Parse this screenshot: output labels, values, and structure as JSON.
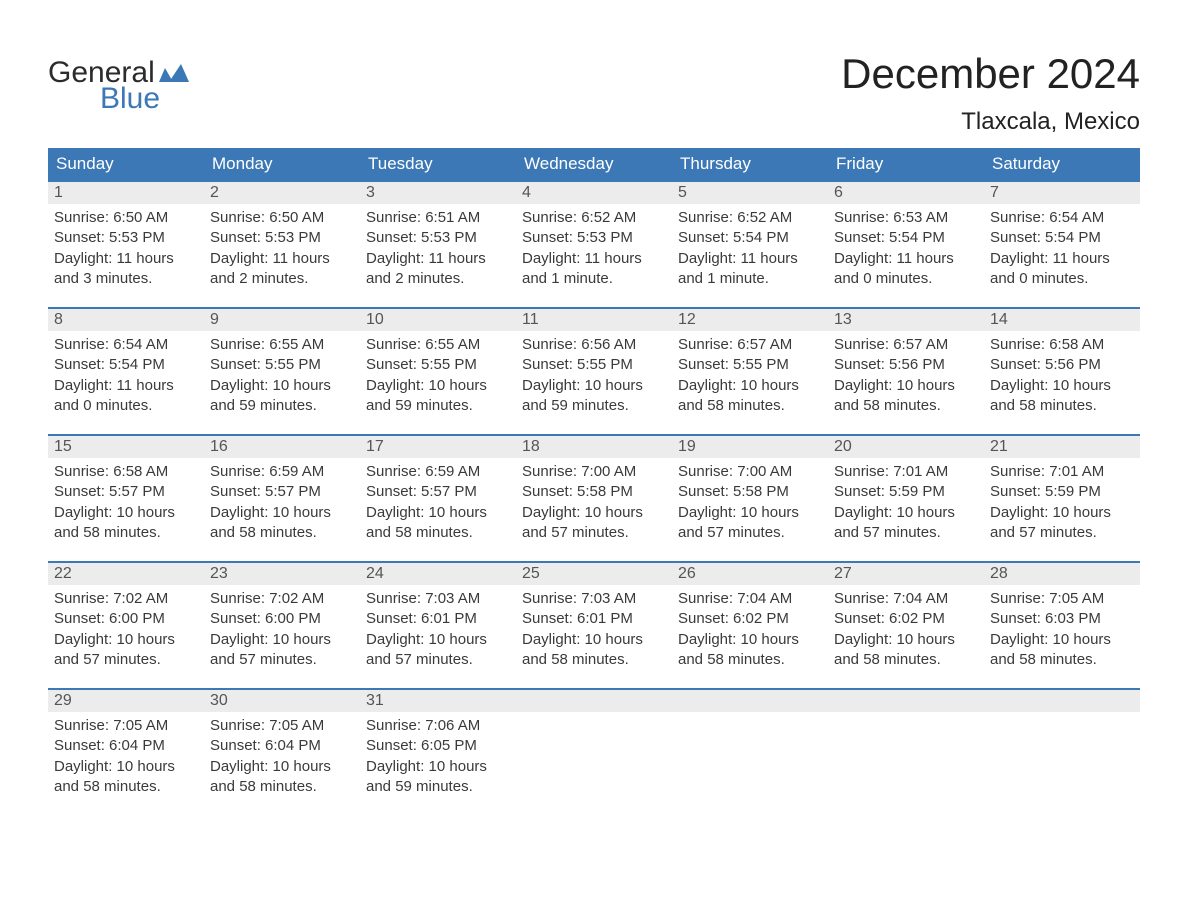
{
  "brand": {
    "word1": "General",
    "word2": "Blue",
    "accent_color": "#3b78b5",
    "text_color": "#2b2b2b"
  },
  "header": {
    "month_title": "December 2024",
    "location": "Tlaxcala, Mexico"
  },
  "calendar": {
    "weekday_bg": "#3b78b5",
    "weekday_fg": "#ffffff",
    "rule_color": "#3b78b5",
    "band_bg": "#ececec",
    "text_color": "#3a3a3a",
    "page_bg": "#ffffff",
    "weekdays": [
      "Sunday",
      "Monday",
      "Tuesday",
      "Wednesday",
      "Thursday",
      "Friday",
      "Saturday"
    ],
    "weeks": [
      [
        {
          "num": "1",
          "sunrise": "Sunrise: 6:50 AM",
          "sunset": "Sunset: 5:53 PM",
          "daylight1": "Daylight: 11 hours",
          "daylight2": "and 3 minutes."
        },
        {
          "num": "2",
          "sunrise": "Sunrise: 6:50 AM",
          "sunset": "Sunset: 5:53 PM",
          "daylight1": "Daylight: 11 hours",
          "daylight2": "and 2 minutes."
        },
        {
          "num": "3",
          "sunrise": "Sunrise: 6:51 AM",
          "sunset": "Sunset: 5:53 PM",
          "daylight1": "Daylight: 11 hours",
          "daylight2": "and 2 minutes."
        },
        {
          "num": "4",
          "sunrise": "Sunrise: 6:52 AM",
          "sunset": "Sunset: 5:53 PM",
          "daylight1": "Daylight: 11 hours",
          "daylight2": "and 1 minute."
        },
        {
          "num": "5",
          "sunrise": "Sunrise: 6:52 AM",
          "sunset": "Sunset: 5:54 PM",
          "daylight1": "Daylight: 11 hours",
          "daylight2": "and 1 minute."
        },
        {
          "num": "6",
          "sunrise": "Sunrise: 6:53 AM",
          "sunset": "Sunset: 5:54 PM",
          "daylight1": "Daylight: 11 hours",
          "daylight2": "and 0 minutes."
        },
        {
          "num": "7",
          "sunrise": "Sunrise: 6:54 AM",
          "sunset": "Sunset: 5:54 PM",
          "daylight1": "Daylight: 11 hours",
          "daylight2": "and 0 minutes."
        }
      ],
      [
        {
          "num": "8",
          "sunrise": "Sunrise: 6:54 AM",
          "sunset": "Sunset: 5:54 PM",
          "daylight1": "Daylight: 11 hours",
          "daylight2": "and 0 minutes."
        },
        {
          "num": "9",
          "sunrise": "Sunrise: 6:55 AM",
          "sunset": "Sunset: 5:55 PM",
          "daylight1": "Daylight: 10 hours",
          "daylight2": "and 59 minutes."
        },
        {
          "num": "10",
          "sunrise": "Sunrise: 6:55 AM",
          "sunset": "Sunset: 5:55 PM",
          "daylight1": "Daylight: 10 hours",
          "daylight2": "and 59 minutes."
        },
        {
          "num": "11",
          "sunrise": "Sunrise: 6:56 AM",
          "sunset": "Sunset: 5:55 PM",
          "daylight1": "Daylight: 10 hours",
          "daylight2": "and 59 minutes."
        },
        {
          "num": "12",
          "sunrise": "Sunrise: 6:57 AM",
          "sunset": "Sunset: 5:55 PM",
          "daylight1": "Daylight: 10 hours",
          "daylight2": "and 58 minutes."
        },
        {
          "num": "13",
          "sunrise": "Sunrise: 6:57 AM",
          "sunset": "Sunset: 5:56 PM",
          "daylight1": "Daylight: 10 hours",
          "daylight2": "and 58 minutes."
        },
        {
          "num": "14",
          "sunrise": "Sunrise: 6:58 AM",
          "sunset": "Sunset: 5:56 PM",
          "daylight1": "Daylight: 10 hours",
          "daylight2": "and 58 minutes."
        }
      ],
      [
        {
          "num": "15",
          "sunrise": "Sunrise: 6:58 AM",
          "sunset": "Sunset: 5:57 PM",
          "daylight1": "Daylight: 10 hours",
          "daylight2": "and 58 minutes."
        },
        {
          "num": "16",
          "sunrise": "Sunrise: 6:59 AM",
          "sunset": "Sunset: 5:57 PM",
          "daylight1": "Daylight: 10 hours",
          "daylight2": "and 58 minutes."
        },
        {
          "num": "17",
          "sunrise": "Sunrise: 6:59 AM",
          "sunset": "Sunset: 5:57 PM",
          "daylight1": "Daylight: 10 hours",
          "daylight2": "and 58 minutes."
        },
        {
          "num": "18",
          "sunrise": "Sunrise: 7:00 AM",
          "sunset": "Sunset: 5:58 PM",
          "daylight1": "Daylight: 10 hours",
          "daylight2": "and 57 minutes."
        },
        {
          "num": "19",
          "sunrise": "Sunrise: 7:00 AM",
          "sunset": "Sunset: 5:58 PM",
          "daylight1": "Daylight: 10 hours",
          "daylight2": "and 57 minutes."
        },
        {
          "num": "20",
          "sunrise": "Sunrise: 7:01 AM",
          "sunset": "Sunset: 5:59 PM",
          "daylight1": "Daylight: 10 hours",
          "daylight2": "and 57 minutes."
        },
        {
          "num": "21",
          "sunrise": "Sunrise: 7:01 AM",
          "sunset": "Sunset: 5:59 PM",
          "daylight1": "Daylight: 10 hours",
          "daylight2": "and 57 minutes."
        }
      ],
      [
        {
          "num": "22",
          "sunrise": "Sunrise: 7:02 AM",
          "sunset": "Sunset: 6:00 PM",
          "daylight1": "Daylight: 10 hours",
          "daylight2": "and 57 minutes."
        },
        {
          "num": "23",
          "sunrise": "Sunrise: 7:02 AM",
          "sunset": "Sunset: 6:00 PM",
          "daylight1": "Daylight: 10 hours",
          "daylight2": "and 57 minutes."
        },
        {
          "num": "24",
          "sunrise": "Sunrise: 7:03 AM",
          "sunset": "Sunset: 6:01 PM",
          "daylight1": "Daylight: 10 hours",
          "daylight2": "and 57 minutes."
        },
        {
          "num": "25",
          "sunrise": "Sunrise: 7:03 AM",
          "sunset": "Sunset: 6:01 PM",
          "daylight1": "Daylight: 10 hours",
          "daylight2": "and 58 minutes."
        },
        {
          "num": "26",
          "sunrise": "Sunrise: 7:04 AM",
          "sunset": "Sunset: 6:02 PM",
          "daylight1": "Daylight: 10 hours",
          "daylight2": "and 58 minutes."
        },
        {
          "num": "27",
          "sunrise": "Sunrise: 7:04 AM",
          "sunset": "Sunset: 6:02 PM",
          "daylight1": "Daylight: 10 hours",
          "daylight2": "and 58 minutes."
        },
        {
          "num": "28",
          "sunrise": "Sunrise: 7:05 AM",
          "sunset": "Sunset: 6:03 PM",
          "daylight1": "Daylight: 10 hours",
          "daylight2": "and 58 minutes."
        }
      ],
      [
        {
          "num": "29",
          "sunrise": "Sunrise: 7:05 AM",
          "sunset": "Sunset: 6:04 PM",
          "daylight1": "Daylight: 10 hours",
          "daylight2": "and 58 minutes."
        },
        {
          "num": "30",
          "sunrise": "Sunrise: 7:05 AM",
          "sunset": "Sunset: 6:04 PM",
          "daylight1": "Daylight: 10 hours",
          "daylight2": "and 58 minutes."
        },
        {
          "num": "31",
          "sunrise": "Sunrise: 7:06 AM",
          "sunset": "Sunset: 6:05 PM",
          "daylight1": "Daylight: 10 hours",
          "daylight2": "and 59 minutes."
        },
        {
          "empty": true
        },
        {
          "empty": true
        },
        {
          "empty": true
        },
        {
          "empty": true
        }
      ]
    ]
  }
}
